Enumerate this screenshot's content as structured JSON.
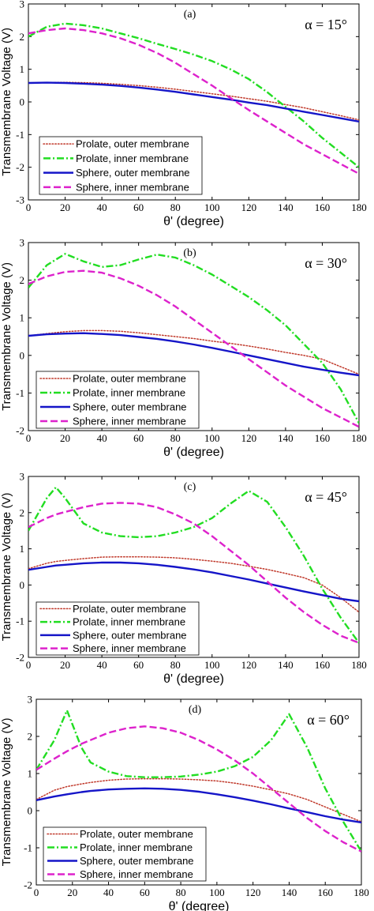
{
  "figure": {
    "ylabel": "Transmembrane Voltage (V)",
    "xlabel": "θ' (degree)",
    "colors": {
      "prolate_outer": "#c0392b",
      "prolate_inner": "#22dd22",
      "sphere_outer": "#1515c8",
      "sphere_inner": "#dd22cc"
    }
  },
  "chart_data": [
    {
      "type": "line",
      "panel_label": "(a)",
      "annotation": "α = 15°",
      "xlabel": "θ' (degree)",
      "ylabel": "Transmembrane Voltage (V)",
      "xlim": [
        0,
        180
      ],
      "ylim": [
        -3,
        3
      ],
      "xticks": [
        "0",
        "20",
        "40",
        "60",
        "80",
        "100",
        "120",
        "140",
        "160",
        "180"
      ],
      "yticks": [
        "-3",
        "-2",
        "-1",
        "0",
        "1",
        "2",
        "3"
      ],
      "legend_position": "lower-left",
      "x": [
        0,
        10,
        20,
        30,
        40,
        50,
        60,
        70,
        80,
        90,
        100,
        110,
        120,
        130,
        140,
        150,
        160,
        170,
        180
      ],
      "series": [
        {
          "name": "Prolate, outer membrane",
          "style": "dotted",
          "values": [
            0.58,
            0.6,
            0.6,
            0.59,
            0.57,
            0.54,
            0.5,
            0.45,
            0.39,
            0.32,
            0.25,
            0.18,
            0.1,
            0.02,
            -0.08,
            -0.18,
            -0.3,
            -0.42,
            -0.55
          ]
        },
        {
          "name": "Prolate, inner membrane",
          "style": "dashdot",
          "values": [
            2.0,
            2.3,
            2.4,
            2.35,
            2.25,
            2.1,
            1.95,
            1.78,
            1.62,
            1.45,
            1.25,
            1.0,
            0.7,
            0.3,
            -0.15,
            -0.6,
            -1.1,
            -1.55,
            -2.0
          ]
        },
        {
          "name": "Sphere, outer membrane",
          "style": "solid",
          "values": [
            0.58,
            0.59,
            0.58,
            0.56,
            0.53,
            0.49,
            0.44,
            0.38,
            0.31,
            0.23,
            0.15,
            0.07,
            -0.02,
            -0.1,
            -0.2,
            -0.3,
            -0.4,
            -0.5,
            -0.6
          ]
        },
        {
          "name": "Sphere, inner membrane",
          "style": "dashed",
          "values": [
            2.1,
            2.2,
            2.25,
            2.2,
            2.1,
            1.95,
            1.75,
            1.5,
            1.2,
            0.85,
            0.5,
            0.12,
            -0.25,
            -0.6,
            -0.95,
            -1.3,
            -1.6,
            -1.9,
            -2.2
          ]
        }
      ]
    },
    {
      "type": "line",
      "panel_label": "(b)",
      "annotation": "α = 30°",
      "xlabel": "θ' (degree)",
      "ylabel": "Transmembrane Voltage (V)",
      "xlim": [
        0,
        180
      ],
      "ylim": [
        -2,
        3
      ],
      "xticks": [
        "0",
        "20",
        "40",
        "60",
        "80",
        "100",
        "120",
        "140",
        "160",
        "180"
      ],
      "yticks": [
        "-2",
        "-1",
        "0",
        "1",
        "2",
        "3"
      ],
      "legend_position": "lower-left",
      "x": [
        0,
        10,
        20,
        30,
        40,
        50,
        60,
        70,
        80,
        90,
        100,
        110,
        120,
        130,
        140,
        150,
        160,
        170,
        180
      ],
      "series": [
        {
          "name": "Prolate, outer membrane",
          "style": "dotted",
          "values": [
            0.52,
            0.58,
            0.63,
            0.66,
            0.66,
            0.64,
            0.6,
            0.55,
            0.5,
            0.45,
            0.38,
            0.32,
            0.25,
            0.17,
            0.08,
            0.0,
            -0.1,
            -0.3,
            -0.5
          ]
        },
        {
          "name": "Prolate, inner membrane",
          "style": "dashdot",
          "values": [
            1.8,
            2.4,
            2.7,
            2.5,
            2.35,
            2.4,
            2.55,
            2.68,
            2.6,
            2.4,
            2.15,
            1.85,
            1.55,
            1.2,
            0.8,
            0.3,
            -0.2,
            -0.9,
            -1.8
          ]
        },
        {
          "name": "Sphere, outer membrane",
          "style": "solid",
          "values": [
            0.52,
            0.56,
            0.58,
            0.59,
            0.57,
            0.54,
            0.49,
            0.44,
            0.37,
            0.29,
            0.2,
            0.1,
            0.0,
            -0.1,
            -0.2,
            -0.3,
            -0.38,
            -0.46,
            -0.53
          ]
        },
        {
          "name": "Sphere, inner membrane",
          "style": "dashed",
          "values": [
            1.9,
            2.1,
            2.22,
            2.25,
            2.2,
            2.05,
            1.85,
            1.6,
            1.3,
            0.95,
            0.6,
            0.25,
            -0.1,
            -0.45,
            -0.8,
            -1.1,
            -1.4,
            -1.65,
            -1.9
          ]
        }
      ]
    },
    {
      "type": "line",
      "panel_label": "(c)",
      "annotation": "α = 45°",
      "xlabel": "θ' (degree)",
      "ylabel": "Transmembrane Voltage (V)",
      "xlim": [
        0,
        180
      ],
      "ylim": [
        -2,
        3
      ],
      "xticks": [
        "0",
        "20",
        "40",
        "60",
        "80",
        "100",
        "120",
        "140",
        "160",
        "180"
      ],
      "yticks": [
        "-2",
        "-1",
        "0",
        "1",
        "2",
        "3"
      ],
      "legend_position": "lower-left",
      "x": [
        0,
        10,
        15,
        20,
        30,
        40,
        50,
        60,
        70,
        80,
        90,
        100,
        110,
        120,
        130,
        140,
        150,
        160,
        170,
        180
      ],
      "series": [
        {
          "name": "Prolate, outer membrane",
          "style": "dotted",
          "values": [
            0.45,
            0.6,
            0.65,
            0.68,
            0.73,
            0.77,
            0.78,
            0.78,
            0.77,
            0.75,
            0.71,
            0.66,
            0.6,
            0.52,
            0.43,
            0.32,
            0.2,
            0.0,
            -0.35,
            -0.75
          ]
        },
        {
          "name": "Prolate, inner membrane",
          "style": "dashdot",
          "values": [
            1.5,
            2.4,
            2.7,
            2.4,
            1.7,
            1.45,
            1.35,
            1.32,
            1.35,
            1.45,
            1.6,
            1.85,
            2.25,
            2.6,
            2.3,
            1.6,
            0.8,
            -0.1,
            -0.9,
            -1.6
          ]
        },
        {
          "name": "Sphere, outer membrane",
          "style": "solid",
          "values": [
            0.42,
            0.5,
            0.54,
            0.56,
            0.6,
            0.62,
            0.62,
            0.6,
            0.56,
            0.5,
            0.43,
            0.35,
            0.25,
            0.15,
            0.04,
            -0.07,
            -0.18,
            -0.28,
            -0.38,
            -0.45
          ]
        },
        {
          "name": "Sphere, inner membrane",
          "style": "dashed",
          "values": [
            1.6,
            1.85,
            1.95,
            2.02,
            2.15,
            2.25,
            2.27,
            2.25,
            2.15,
            1.95,
            1.7,
            1.35,
            0.95,
            0.55,
            0.1,
            -0.35,
            -0.75,
            -1.1,
            -1.4,
            -1.6
          ]
        }
      ]
    },
    {
      "type": "line",
      "panel_label": "(d)",
      "annotation": "α = 60°",
      "xlabel": "θ' (degree)",
      "ylabel": "Transmembrane Voltage (V)",
      "xlim": [
        0,
        180
      ],
      "ylim": [
        -2,
        3
      ],
      "xticks": [
        "0",
        "20",
        "40",
        "60",
        "80",
        "100",
        "120",
        "140",
        "160",
        "180"
      ],
      "yticks": [
        "-2",
        "-1",
        "0",
        "1",
        "2",
        "3"
      ],
      "legend_position": "lower-left",
      "x": [
        0,
        10,
        17,
        25,
        30,
        40,
        50,
        60,
        70,
        80,
        90,
        100,
        110,
        120,
        130,
        140,
        150,
        160,
        170,
        180
      ],
      "series": [
        {
          "name": "Prolate, outer membrane",
          "style": "dotted",
          "values": [
            0.3,
            0.55,
            0.65,
            0.72,
            0.76,
            0.82,
            0.85,
            0.86,
            0.86,
            0.85,
            0.83,
            0.8,
            0.74,
            0.66,
            0.56,
            0.45,
            0.3,
            0.1,
            -0.1,
            -0.3
          ]
        },
        {
          "name": "Prolate, inner membrane",
          "style": "dashdot",
          "values": [
            1.1,
            1.9,
            2.7,
            1.7,
            1.3,
            1.05,
            0.93,
            0.9,
            0.9,
            0.92,
            0.97,
            1.05,
            1.2,
            1.45,
            1.9,
            2.6,
            1.7,
            0.6,
            -0.3,
            -1.1
          ]
        },
        {
          "name": "Sphere, outer membrane",
          "style": "solid",
          "values": [
            0.28,
            0.38,
            0.44,
            0.5,
            0.53,
            0.57,
            0.59,
            0.6,
            0.59,
            0.56,
            0.51,
            0.44,
            0.36,
            0.27,
            0.17,
            0.06,
            -0.04,
            -0.15,
            -0.24,
            -0.32
          ]
        },
        {
          "name": "Sphere, inner membrane",
          "style": "dashed",
          "values": [
            1.1,
            1.4,
            1.6,
            1.8,
            1.9,
            2.1,
            2.22,
            2.27,
            2.22,
            2.1,
            1.9,
            1.65,
            1.35,
            1.0,
            0.6,
            0.2,
            -0.2,
            -0.55,
            -0.85,
            -1.1
          ]
        }
      ]
    }
  ]
}
